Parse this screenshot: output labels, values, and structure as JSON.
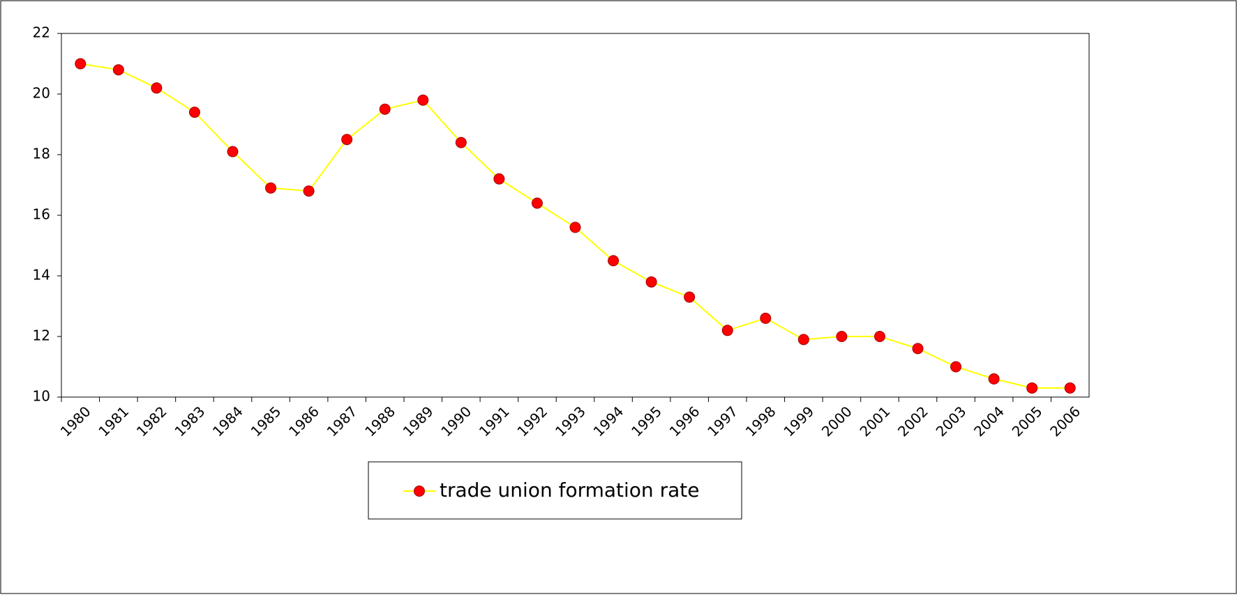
{
  "chart_data": {
    "type": "line",
    "categories": [
      "1980",
      "1981",
      "1982",
      "1983",
      "1984",
      "1985",
      "1986",
      "1987",
      "1988",
      "1989",
      "1990",
      "1991",
      "1992",
      "1993",
      "1994",
      "1995",
      "1996",
      "1997",
      "1998",
      "1999",
      "2000",
      "2001",
      "2002",
      "2003",
      "2004",
      "2005",
      "2006"
    ],
    "series": [
      {
        "name": "trade union formation rate",
        "color": "#ffff00",
        "marker_color": "#ff0000",
        "values": [
          21,
          20.8,
          20.2,
          19.4,
          18.1,
          16.9,
          16.8,
          18.5,
          19.5,
          19.8,
          18.4,
          17.2,
          16.4,
          15.6,
          14.5,
          13.8,
          13.3,
          12.2,
          12.6,
          11.9,
          12,
          12,
          11.6,
          11,
          10.6,
          10.3,
          10.3
        ]
      }
    ],
    "ylim": [
      10,
      22
    ],
    "yticks": [
      10,
      12,
      14,
      16,
      18,
      20,
      22
    ],
    "grid": false,
    "legend": "bottom"
  }
}
